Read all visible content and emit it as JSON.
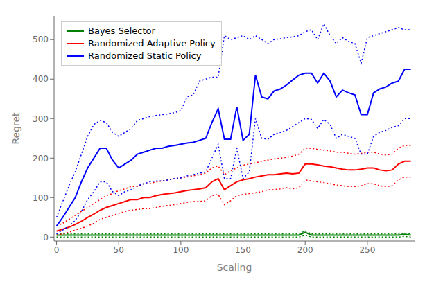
{
  "chart_data": {
    "type": "line",
    "title": "",
    "xlabel": "Scaling",
    "ylabel": "Regret",
    "xlim": [
      -2,
      288
    ],
    "ylim": [
      -10,
      560
    ],
    "xticks": [
      0,
      50,
      100,
      150,
      200,
      250
    ],
    "yticks": [
      0,
      100,
      200,
      300,
      400,
      500
    ],
    "grid": false,
    "legend": "upper left",
    "x": [
      0,
      5,
      10,
      15,
      20,
      25,
      30,
      35,
      40,
      45,
      50,
      55,
      60,
      65,
      70,
      75,
      80,
      85,
      90,
      95,
      100,
      105,
      110,
      115,
      120,
      125,
      130,
      135,
      140,
      145,
      150,
      155,
      160,
      165,
      170,
      175,
      180,
      185,
      190,
      195,
      200,
      205,
      210,
      215,
      220,
      225,
      230,
      235,
      240,
      245,
      250,
      255,
      260,
      265,
      270,
      275,
      280,
      285
    ],
    "series": [
      {
        "name": "Bayes Selector",
        "color": "#008000",
        "values": [
          5,
          5,
          5,
          5,
          5,
          5,
          5,
          5,
          5,
          5,
          5,
          5,
          5,
          5,
          5,
          5,
          5,
          5,
          5,
          5,
          5,
          5,
          5,
          5,
          5,
          5,
          5,
          5,
          5,
          5,
          5,
          5,
          5,
          5,
          5,
          5,
          5,
          5,
          5,
          5,
          12,
          5,
          5,
          5,
          5,
          5,
          5,
          5,
          5,
          5,
          5,
          5,
          5,
          5,
          5,
          5,
          7,
          5
        ],
        "upper": [
          8,
          8,
          8,
          8,
          8,
          8,
          8,
          8,
          8,
          8,
          8,
          8,
          8,
          8,
          8,
          8,
          8,
          8,
          8,
          8,
          8,
          8,
          8,
          8,
          8,
          8,
          8,
          8,
          8,
          8,
          8,
          8,
          8,
          8,
          8,
          8,
          8,
          8,
          8,
          8,
          16,
          8,
          8,
          8,
          8,
          8,
          8,
          8,
          8,
          8,
          8,
          8,
          8,
          8,
          8,
          8,
          10,
          8
        ],
        "lower": [
          0,
          0,
          0,
          0,
          0,
          0,
          0,
          0,
          0,
          0,
          0,
          0,
          0,
          0,
          0,
          0,
          0,
          0,
          0,
          0,
          0,
          0,
          0,
          0,
          0,
          0,
          0,
          0,
          0,
          0,
          0,
          0,
          0,
          0,
          0,
          0,
          0,
          0,
          0,
          0,
          5,
          0,
          0,
          0,
          0,
          0,
          0,
          0,
          0,
          0,
          0,
          0,
          0,
          0,
          0,
          0,
          2,
          0
        ]
      },
      {
        "name": "Randomized Adaptive Policy",
        "color": "#ff0000",
        "values": [
          15,
          20,
          25,
          32,
          40,
          50,
          58,
          68,
          75,
          80,
          85,
          90,
          95,
          95,
          100,
          100,
          105,
          108,
          110,
          112,
          115,
          118,
          120,
          122,
          125,
          140,
          148,
          120,
          130,
          140,
          145,
          148,
          152,
          155,
          158,
          158,
          160,
          162,
          160,
          162,
          185,
          185,
          183,
          180,
          178,
          175,
          172,
          170,
          170,
          172,
          175,
          175,
          170,
          168,
          170,
          185,
          192,
          192
        ],
        "upper": [
          28,
          35,
          45,
          55,
          65,
          75,
          85,
          95,
          105,
          110,
          118,
          122,
          128,
          128,
          135,
          135,
          140,
          142,
          145,
          148,
          150,
          152,
          155,
          158,
          162,
          175,
          180,
          158,
          168,
          175,
          182,
          185,
          188,
          192,
          195,
          198,
          200,
          202,
          205,
          210,
          225,
          225,
          222,
          220,
          218,
          215,
          215,
          212,
          210,
          212,
          215,
          215,
          210,
          208,
          210,
          225,
          232,
          232
        ],
        "lower": [
          5,
          8,
          12,
          18,
          22,
          28,
          35,
          45,
          50,
          55,
          60,
          65,
          68,
          70,
          72,
          72,
          75,
          78,
          80,
          82,
          85,
          88,
          90,
          90,
          92,
          105,
          108,
          82,
          92,
          105,
          108,
          110,
          112,
          115,
          120,
          120,
          122,
          125,
          122,
          125,
          145,
          142,
          140,
          138,
          135,
          132,
          130,
          128,
          128,
          130,
          135,
          135,
          130,
          128,
          130,
          145,
          152,
          152
        ]
      },
      {
        "name": "Randomized Static Policy",
        "color": "#0000ff",
        "values": [
          28,
          50,
          75,
          100,
          140,
          175,
          200,
          225,
          225,
          195,
          175,
          185,
          195,
          210,
          215,
          220,
          225,
          225,
          230,
          232,
          235,
          238,
          240,
          245,
          250,
          290,
          325,
          248,
          248,
          330,
          245,
          260,
          410,
          355,
          350,
          370,
          375,
          385,
          398,
          410,
          415,
          415,
          390,
          415,
          395,
          355,
          372,
          365,
          360,
          310,
          310,
          365,
          375,
          380,
          390,
          395,
          425,
          425
        ],
        "upper": [
          50,
          90,
          130,
          165,
          210,
          255,
          285,
          295,
          290,
          265,
          255,
          265,
          275,
          295,
          300,
          305,
          308,
          310,
          312,
          315,
          320,
          355,
          360,
          395,
          400,
          405,
          405,
          510,
          500,
          505,
          510,
          500,
          510,
          500,
          490,
          500,
          502,
          505,
          507,
          510,
          520,
          525,
          500,
          540,
          510,
          490,
          505,
          495,
          490,
          440,
          505,
          510,
          515,
          520,
          525,
          530,
          525,
          525
        ],
        "lower": [
          8,
          18,
          28,
          42,
          65,
          95,
          115,
          140,
          140,
          115,
          105,
          115,
          120,
          130,
          135,
          140,
          142,
          142,
          145,
          148,
          150,
          155,
          158,
          162,
          165,
          200,
          235,
          148,
          148,
          225,
          148,
          165,
          300,
          250,
          248,
          260,
          265,
          270,
          280,
          290,
          300,
          298,
          275,
          298,
          285,
          250,
          260,
          255,
          250,
          210,
          210,
          255,
          265,
          270,
          278,
          282,
          300,
          300
        ]
      }
    ]
  }
}
